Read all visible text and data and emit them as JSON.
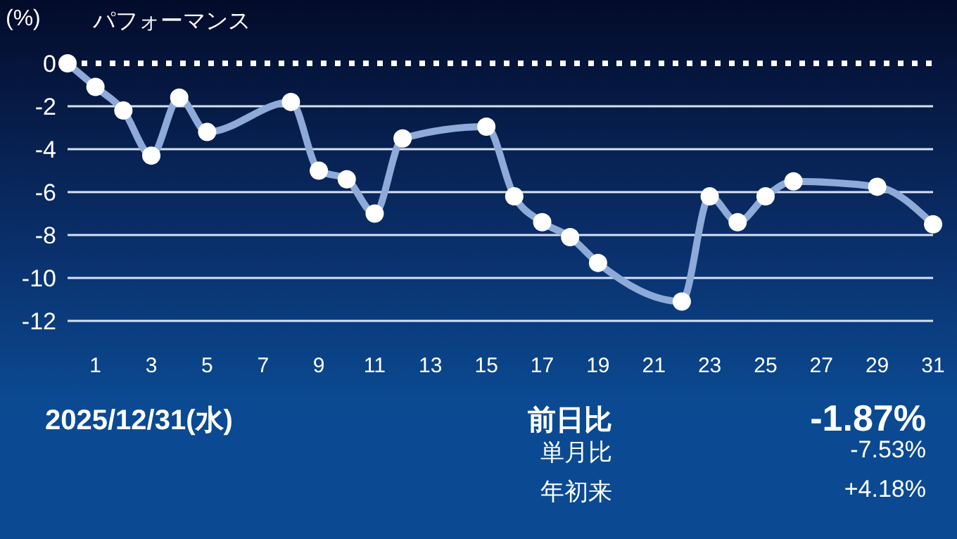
{
  "chart_data": {
    "type": "line",
    "title": "パフォーマンス",
    "ylabel": "(%)",
    "x": [
      0,
      1,
      2,
      3,
      4,
      5,
      8,
      9,
      10,
      11,
      12,
      15,
      16,
      17,
      18,
      19,
      22,
      23,
      24,
      25,
      26,
      29,
      31
    ],
    "series": [
      {
        "color": "#8eaad8",
        "values": [
          0,
          -1.1,
          -2.2,
          -4.3,
          -1.6,
          -3.2,
          -1.8,
          -5.0,
          -5.4,
          -7.0,
          -3.5,
          -2.95,
          -6.2,
          -7.4,
          -8.1,
          -9.3,
          -11.1,
          -6.2,
          -7.4,
          -6.2,
          -5.5,
          -5.75,
          -7.5
        ]
      }
    ],
    "xlim": [
      0,
      31
    ],
    "xticks": [
      1,
      3,
      5,
      7,
      9,
      11,
      13,
      15,
      17,
      19,
      21,
      23,
      25,
      27,
      29,
      31
    ],
    "ylim": [
      -12,
      0
    ],
    "yticks": [
      0,
      -2,
      -4,
      -6,
      -8,
      -10,
      -12
    ],
    "grid": "y",
    "marker": "circle",
    "ref_lines": [
      {
        "axis": "y",
        "value": 0,
        "color": "#ffffff",
        "line_style": "dotted"
      }
    ],
    "annotations": [
      "2025/12/31(水)",
      "前日比",
      "-1.87%",
      "単月比",
      "-7.53%",
      "年初来",
      "+4.18%"
    ]
  }
}
